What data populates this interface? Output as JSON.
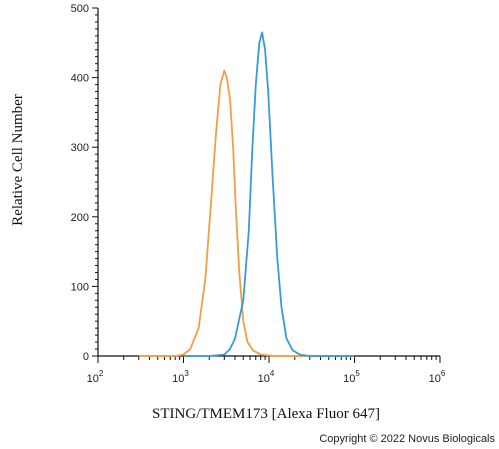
{
  "chart_data": {
    "type": "line",
    "xlabel": "STING/TMEM173 [Alexa Fluor 647]",
    "ylabel": "Relative Cell Number",
    "x_scale": "log",
    "xlim": [
      100,
      1000000
    ],
    "ylim": [
      0,
      500
    ],
    "yticks": [
      0,
      100,
      200,
      300,
      400,
      500
    ],
    "xticks": [
      {
        "value": 100,
        "base": "10",
        "exp": "2"
      },
      {
        "value": 1000,
        "base": "10",
        "exp": "3"
      },
      {
        "value": 10000,
        "base": "10",
        "exp": "4"
      },
      {
        "value": 100000,
        "base": "10",
        "exp": "5"
      },
      {
        "value": 1000000,
        "base": "10",
        "exp": "6"
      }
    ],
    "series": [
      {
        "color": "#f0a040",
        "points": [
          [
            300,
            0
          ],
          [
            800,
            0
          ],
          [
            1000,
            2
          ],
          [
            1200,
            10
          ],
          [
            1500,
            40
          ],
          [
            1800,
            110
          ],
          [
            2100,
            220
          ],
          [
            2400,
            320
          ],
          [
            2700,
            390
          ],
          [
            3000,
            410
          ],
          [
            3200,
            400
          ],
          [
            3500,
            370
          ],
          [
            3800,
            300
          ],
          [
            4100,
            210
          ],
          [
            4500,
            120
          ],
          [
            5000,
            50
          ],
          [
            5600,
            20
          ],
          [
            6500,
            8
          ],
          [
            8000,
            2
          ],
          [
            12000,
            0
          ],
          [
            100000,
            0
          ]
        ]
      },
      {
        "color": "#3a9ad9",
        "points": [
          [
            1000,
            0
          ],
          [
            2000,
            0
          ],
          [
            3000,
            2
          ],
          [
            3500,
            10
          ],
          [
            4000,
            25
          ],
          [
            5000,
            80
          ],
          [
            5800,
            180
          ],
          [
            6400,
            300
          ],
          [
            7000,
            390
          ],
          [
            7700,
            450
          ],
          [
            8300,
            465
          ],
          [
            9000,
            440
          ],
          [
            9800,
            380
          ],
          [
            11000,
            260
          ],
          [
            12500,
            140
          ],
          [
            14000,
            70
          ],
          [
            16000,
            25
          ],
          [
            19000,
            8
          ],
          [
            23000,
            2
          ],
          [
            30000,
            0
          ],
          [
            100000,
            0
          ]
        ]
      }
    ]
  },
  "copyright": "Copyright © 2022 Novus Biologicals"
}
